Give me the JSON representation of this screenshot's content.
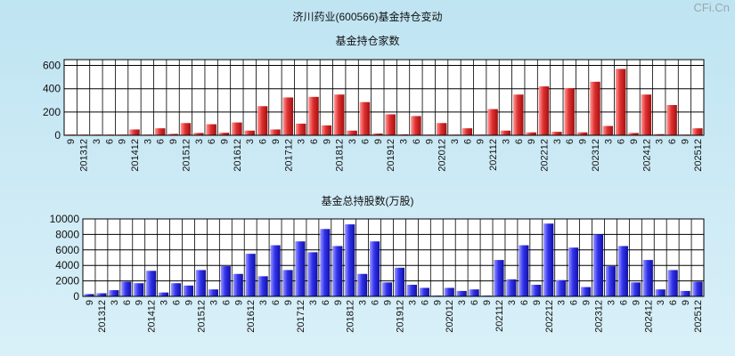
{
  "page_title": "济川药业(600566)基金持仓变动",
  "watermark": "CFi.Cn",
  "colors": {
    "red_bar": "#e03030",
    "blue_bar": "#3333ee",
    "grid": "#000000",
    "plot_bg": "#ffffff"
  },
  "chart_data": [
    {
      "type": "bar",
      "title": "基金持仓家数",
      "ylim": [
        0,
        650
      ],
      "yticks": [
        0,
        200,
        400,
        600
      ],
      "grid": true,
      "categories": [
        "9",
        "201312",
        "3",
        "6",
        "9",
        "201412",
        "3",
        "6",
        "9",
        "201512",
        "3",
        "6",
        "9",
        "201612",
        "3",
        "6",
        "9",
        "201712",
        "3",
        "6",
        "9",
        "201812",
        "3",
        "6",
        "9",
        "201912",
        "3",
        "6",
        "9",
        "202012",
        "3",
        "6",
        "9",
        "202112",
        "3",
        "6",
        "9",
        "202212",
        "3",
        "6",
        "9",
        "202312",
        "3",
        "6",
        "9",
        "202412",
        "3",
        "6",
        "9",
        "202512"
      ],
      "values": [
        1,
        2,
        3,
        2,
        3,
        50,
        6,
        60,
        12,
        105,
        20,
        95,
        22,
        110,
        40,
        250,
        50,
        325,
        100,
        330,
        85,
        350,
        40,
        285,
        15,
        180,
        8,
        165,
        5,
        105,
        3,
        60,
        2,
        225,
        40,
        350,
        25,
        420,
        30,
        405,
        25,
        460,
        80,
        570,
        20,
        350,
        10,
        260,
        5,
        60
      ]
    },
    {
      "type": "bar",
      "title": "基金总持股数(万股)",
      "ylim": [
        0,
        10000
      ],
      "yticks": [
        0,
        2000,
        4000,
        6000,
        8000,
        10000
      ],
      "grid": true,
      "categories": [
        "9",
        "201312",
        "3",
        "6",
        "9",
        "201412",
        "3",
        "6",
        "9",
        "201512",
        "3",
        "6",
        "9",
        "201612",
        "3",
        "6",
        "9",
        "201712",
        "3",
        "6",
        "9",
        "201812",
        "3",
        "6",
        "9",
        "201912",
        "3",
        "6",
        "9",
        "202012",
        "3",
        "6",
        "9",
        "202112",
        "3",
        "6",
        "9",
        "202212",
        "3",
        "6",
        "9",
        "202312",
        "3",
        "6",
        "9",
        "202412",
        "3",
        "6",
        "9",
        "202512"
      ],
      "values": [
        300,
        400,
        800,
        1900,
        1700,
        3300,
        500,
        1700,
        1400,
        3400,
        900,
        3900,
        2900,
        5500,
        2600,
        6600,
        3400,
        7100,
        5700,
        8700,
        6500,
        9300,
        2900,
        7100,
        1800,
        3700,
        1500,
        1100,
        100,
        1100,
        700,
        900,
        100,
        4700,
        2200,
        6600,
        1500,
        9400,
        2100,
        6300,
        1200,
        8000,
        3900,
        6500,
        1800,
        4700,
        900,
        3400,
        700,
        1900
      ]
    }
  ]
}
